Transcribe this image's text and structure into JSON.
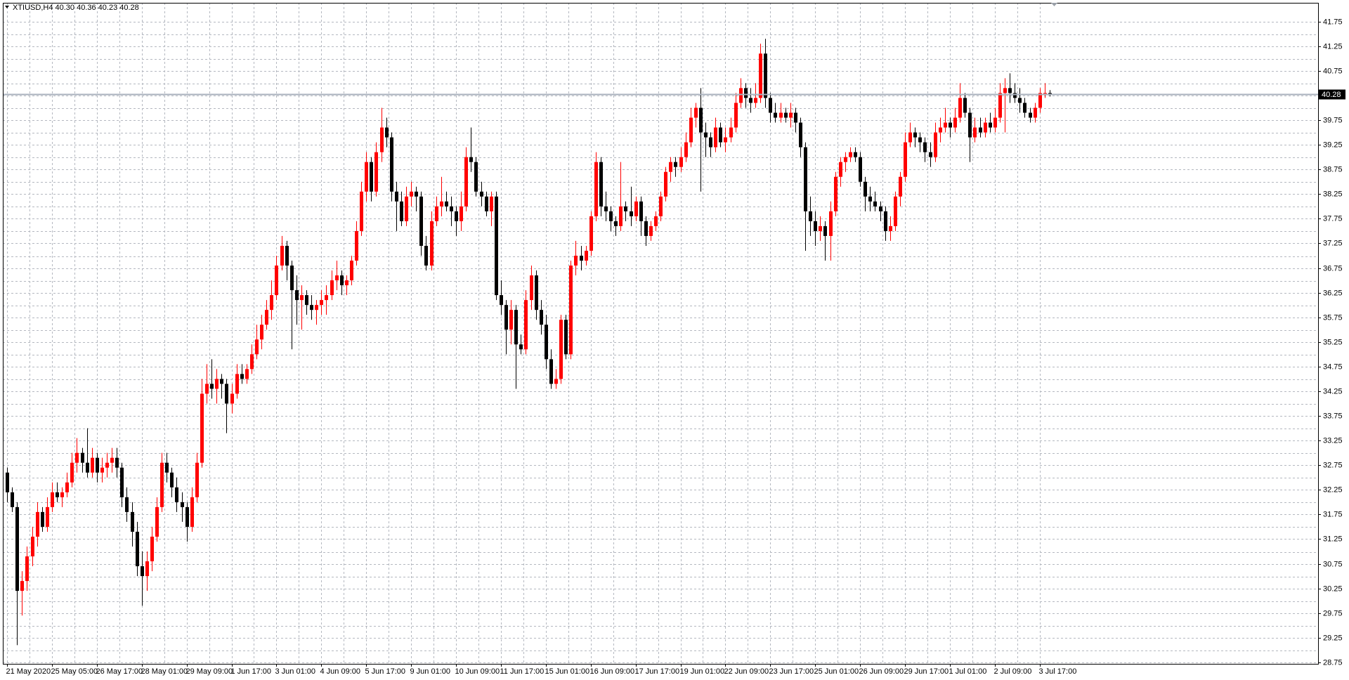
{
  "chart_data": {
    "type": "candlestick",
    "title": "XTIUSD,H4  40.30 40.36 40.23 40.28",
    "up_color": "#ff0000",
    "down_color": "#000000",
    "grid": true,
    "ylim": [
      28.72,
      42.13
    ],
    "yticks": [
      41.75,
      41.25,
      40.75,
      40.25,
      39.75,
      39.25,
      38.75,
      38.25,
      37.75,
      37.25,
      36.75,
      36.25,
      35.75,
      35.25,
      34.75,
      34.25,
      33.75,
      33.25,
      32.75,
      32.25,
      31.75,
      31.25,
      30.75,
      30.25,
      29.75,
      29.25,
      28.75
    ],
    "last_price": 40.28,
    "categories": [
      "21 May 2020",
      null,
      null,
      null,
      null,
      null,
      null,
      null,
      null,
      "25 May 05:00",
      null,
      null,
      null,
      null,
      null,
      null,
      null,
      null,
      "26 May 17:00",
      null,
      null,
      null,
      null,
      null,
      null,
      null,
      null,
      "28 May 01:00",
      null,
      null,
      null,
      null,
      null,
      null,
      null,
      null,
      "29 May 09:00",
      null,
      null,
      null,
      null,
      null,
      null,
      null,
      null,
      "1 Jun 17:00",
      null,
      null,
      null,
      null,
      null,
      null,
      null,
      null,
      "3 Jun 01:00",
      null,
      null,
      null,
      null,
      null,
      null,
      null,
      null,
      "4 Jun 09:00",
      null,
      null,
      null,
      null,
      null,
      null,
      null,
      null,
      "5 Jun 17:00",
      null,
      null,
      null,
      null,
      null,
      null,
      null,
      null,
      "9 Jun 01:00",
      null,
      null,
      null,
      null,
      null,
      null,
      null,
      null,
      "10 Jun 09:00",
      null,
      null,
      null,
      null,
      null,
      null,
      null,
      null,
      "11 Jun 17:00",
      null,
      null,
      null,
      null,
      null,
      null,
      null,
      null,
      "15 Jun 01:00",
      null,
      null,
      null,
      null,
      null,
      null,
      null,
      null,
      "16 Jun 09:00",
      null,
      null,
      null,
      null,
      null,
      null,
      null,
      null,
      "17 Jun 17:00",
      null,
      null,
      null,
      null,
      null,
      null,
      null,
      null,
      "19 Jun 01:00",
      null,
      null,
      null,
      null,
      null,
      null,
      null,
      null,
      "22 Jun 09:00",
      null,
      null,
      null,
      null,
      null,
      null,
      null,
      null,
      "23 Jun 17:00",
      null,
      null,
      null,
      null,
      null,
      null,
      null,
      null,
      "25 Jun 01:00",
      null,
      null,
      null,
      null,
      null,
      null,
      null,
      null,
      "26 Jun 09:00",
      null,
      null,
      null,
      null,
      null,
      null,
      null,
      null,
      "29 Jun 17:00",
      null,
      null,
      null,
      null,
      null,
      null,
      null,
      null,
      "1 Jul 01:00",
      null,
      null,
      null,
      null,
      null,
      null,
      null,
      null,
      "2 Jul 09:00",
      null,
      null,
      null,
      null,
      null,
      null,
      null,
      null,
      "3 Jul 17:00",
      null,
      null
    ],
    "candles": [
      [
        32.6,
        32.7,
        32.0,
        32.2
      ],
      [
        32.2,
        32.3,
        31.8,
        31.9
      ],
      [
        31.9,
        32.0,
        29.1,
        30.2
      ],
      [
        30.2,
        30.6,
        29.7,
        30.4
      ],
      [
        30.4,
        31.1,
        30.2,
        30.9
      ],
      [
        30.9,
        31.5,
        30.7,
        31.3
      ],
      [
        31.3,
        32.0,
        31.1,
        31.8
      ],
      [
        31.8,
        31.9,
        31.4,
        31.5
      ],
      [
        31.5,
        32.1,
        31.4,
        31.9
      ],
      [
        31.9,
        32.4,
        31.8,
        32.2
      ],
      [
        32.2,
        32.4,
        32.0,
        32.1
      ],
      [
        32.1,
        32.3,
        31.9,
        32.2
      ],
      [
        32.2,
        32.6,
        32.1,
        32.4
      ],
      [
        32.4,
        33.0,
        32.3,
        32.8
      ],
      [
        32.8,
        33.3,
        32.6,
        33.0
      ],
      [
        33.0,
        33.1,
        32.6,
        32.8
      ],
      [
        32.8,
        33.5,
        32.5,
        32.6
      ],
      [
        32.6,
        33.1,
        32.5,
        32.9
      ],
      [
        32.9,
        33.0,
        32.4,
        32.6
      ],
      [
        32.6,
        32.9,
        32.4,
        32.7
      ],
      [
        32.7,
        33.0,
        32.5,
        32.8
      ],
      [
        32.8,
        33.1,
        32.6,
        32.9
      ],
      [
        32.9,
        33.1,
        32.5,
        32.7
      ],
      [
        32.7,
        32.8,
        31.9,
        32.1
      ],
      [
        32.1,
        32.3,
        31.6,
        31.8
      ],
      [
        31.8,
        32.0,
        31.1,
        31.4
      ],
      [
        31.4,
        31.6,
        30.5,
        30.7
      ],
      [
        30.7,
        31.0,
        29.9,
        30.5
      ],
      [
        30.5,
        31.0,
        30.2,
        30.8
      ],
      [
        30.8,
        31.5,
        30.6,
        31.3
      ],
      [
        31.3,
        32.1,
        31.2,
        31.9
      ],
      [
        31.9,
        33.0,
        31.8,
        32.8
      ],
      [
        32.8,
        33.0,
        32.4,
        32.6
      ],
      [
        32.6,
        32.7,
        32.1,
        32.3
      ],
      [
        32.3,
        32.5,
        31.8,
        32.0
      ],
      [
        32.0,
        32.2,
        31.6,
        31.9
      ],
      [
        31.9,
        32.0,
        31.2,
        31.5
      ],
      [
        31.5,
        32.3,
        31.4,
        32.1
      ],
      [
        32.1,
        33.0,
        32.0,
        32.8
      ],
      [
        32.8,
        34.5,
        32.7,
        34.2
      ],
      [
        34.2,
        34.8,
        34.0,
        34.4
      ],
      [
        34.4,
        34.9,
        34.1,
        34.3
      ],
      [
        34.3,
        34.7,
        34.0,
        34.5
      ],
      [
        34.5,
        34.6,
        34.1,
        34.4
      ],
      [
        34.4,
        34.5,
        33.4,
        34.0
      ],
      [
        34.0,
        34.4,
        33.8,
        34.2
      ],
      [
        34.2,
        34.8,
        34.1,
        34.6
      ],
      [
        34.6,
        34.8,
        34.4,
        34.5
      ],
      [
        34.5,
        34.8,
        34.4,
        34.7
      ],
      [
        34.7,
        35.2,
        34.6,
        35.0
      ],
      [
        35.0,
        35.6,
        34.9,
        35.3
      ],
      [
        35.3,
        35.8,
        35.1,
        35.6
      ],
      [
        35.6,
        36.1,
        35.5,
        35.9
      ],
      [
        35.9,
        36.5,
        35.7,
        36.2
      ],
      [
        36.2,
        37.0,
        36.1,
        36.8
      ],
      [
        36.8,
        37.4,
        36.7,
        37.2
      ],
      [
        37.2,
        37.3,
        36.5,
        36.8
      ],
      [
        36.8,
        36.9,
        35.1,
        36.3
      ],
      [
        36.3,
        36.6,
        35.6,
        36.1
      ],
      [
        36.1,
        36.4,
        35.5,
        36.2
      ],
      [
        36.2,
        36.3,
        35.8,
        36.0
      ],
      [
        36.0,
        36.2,
        35.7,
        35.9
      ],
      [
        35.9,
        36.1,
        35.6,
        36.0
      ],
      [
        36.0,
        36.3,
        35.8,
        36.1
      ],
      [
        36.1,
        36.4,
        35.8,
        36.2
      ],
      [
        36.2,
        36.7,
        36.1,
        36.5
      ],
      [
        36.5,
        36.9,
        36.3,
        36.6
      ],
      [
        36.6,
        36.7,
        36.2,
        36.4
      ],
      [
        36.4,
        36.6,
        36.2,
        36.5
      ],
      [
        36.5,
        37.0,
        36.4,
        36.9
      ],
      [
        36.9,
        37.7,
        36.8,
        37.5
      ],
      [
        37.5,
        38.5,
        37.4,
        38.3
      ],
      [
        38.3,
        39.1,
        38.1,
        38.9
      ],
      [
        38.9,
        39.0,
        38.1,
        38.3
      ],
      [
        38.3,
        39.3,
        38.2,
        39.1
      ],
      [
        39.1,
        40.0,
        38.9,
        39.6
      ],
      [
        39.6,
        39.8,
        39.2,
        39.4
      ],
      [
        39.4,
        39.5,
        38.1,
        38.3
      ],
      [
        38.3,
        38.5,
        37.5,
        38.1
      ],
      [
        38.1,
        38.3,
        37.6,
        37.7
      ],
      [
        37.7,
        38.4,
        37.6,
        38.2
      ],
      [
        38.2,
        38.5,
        38.0,
        38.3
      ],
      [
        38.3,
        38.4,
        37.9,
        38.2
      ],
      [
        38.2,
        38.3,
        37.0,
        37.2
      ],
      [
        37.2,
        37.4,
        36.7,
        36.8
      ],
      [
        36.8,
        37.9,
        36.7,
        37.7
      ],
      [
        37.7,
        38.2,
        37.6,
        38.0
      ],
      [
        38.0,
        38.6,
        37.8,
        38.1
      ],
      [
        38.1,
        38.3,
        37.9,
        38.0
      ],
      [
        38.0,
        38.2,
        37.6,
        37.9
      ],
      [
        37.9,
        38.0,
        37.4,
        37.7
      ],
      [
        37.7,
        38.3,
        37.5,
        38.0
      ],
      [
        38.0,
        39.2,
        37.9,
        39.0
      ],
      [
        39.0,
        39.6,
        38.7,
        38.9
      ],
      [
        38.9,
        39.0,
        38.2,
        38.3
      ],
      [
        38.3,
        38.5,
        38.0,
        38.2
      ],
      [
        38.2,
        38.3,
        37.8,
        37.9
      ],
      [
        37.9,
        38.3,
        37.6,
        38.2
      ],
      [
        38.2,
        38.3,
        36.1,
        36.2
      ],
      [
        36.2,
        36.5,
        35.8,
        36.0
      ],
      [
        36.0,
        36.1,
        35.0,
        35.5
      ],
      [
        35.5,
        36.1,
        35.2,
        35.9
      ],
      [
        35.9,
        36.0,
        34.3,
        35.2
      ],
      [
        35.2,
        35.4,
        35.0,
        35.1
      ],
      [
        35.1,
        36.3,
        35.0,
        36.1
      ],
      [
        36.1,
        36.8,
        35.9,
        36.6
      ],
      [
        36.6,
        36.7,
        35.7,
        35.9
      ],
      [
        35.9,
        36.1,
        35.4,
        35.6
      ],
      [
        35.6,
        35.8,
        34.7,
        34.9
      ],
      [
        34.9,
        35.1,
        34.3,
        34.4
      ],
      [
        34.4,
        34.7,
        34.3,
        34.5
      ],
      [
        34.5,
        35.8,
        34.4,
        35.7
      ],
      [
        35.7,
        35.8,
        34.9,
        35.0
      ],
      [
        35.0,
        36.9,
        34.9,
        36.8
      ],
      [
        36.8,
        37.3,
        36.6,
        37.0
      ],
      [
        37.0,
        37.2,
        36.7,
        36.9
      ],
      [
        36.9,
        37.2,
        36.8,
        37.1
      ],
      [
        37.1,
        37.9,
        37.0,
        37.8
      ],
      [
        37.8,
        39.1,
        37.7,
        38.9
      ],
      [
        38.9,
        39.0,
        37.8,
        38.0
      ],
      [
        38.0,
        38.3,
        37.7,
        37.9
      ],
      [
        37.9,
        38.0,
        37.5,
        37.7
      ],
      [
        37.7,
        37.8,
        37.4,
        37.6
      ],
      [
        37.6,
        38.9,
        37.5,
        38.0
      ],
      [
        38.0,
        38.1,
        37.7,
        37.9
      ],
      [
        37.9,
        38.4,
        37.6,
        37.8
      ],
      [
        37.8,
        38.2,
        37.7,
        38.1
      ],
      [
        38.1,
        38.2,
        37.4,
        37.7
      ],
      [
        37.7,
        37.8,
        37.2,
        37.4
      ],
      [
        37.4,
        37.7,
        37.3,
        37.6
      ],
      [
        37.6,
        37.9,
        37.5,
        37.8
      ],
      [
        37.8,
        38.3,
        37.7,
        38.2
      ],
      [
        38.2,
        38.8,
        38.1,
        38.7
      ],
      [
        38.7,
        39.0,
        38.5,
        38.9
      ],
      [
        38.9,
        39.0,
        38.6,
        38.8
      ],
      [
        38.8,
        39.2,
        38.7,
        39.0
      ],
      [
        39.0,
        39.5,
        38.9,
        39.3
      ],
      [
        39.3,
        40.0,
        39.2,
        39.8
      ],
      [
        39.8,
        40.1,
        39.6,
        40.0
      ],
      [
        40.0,
        40.4,
        38.3,
        39.5
      ],
      [
        39.5,
        39.7,
        39.0,
        39.4
      ],
      [
        39.4,
        39.5,
        39.0,
        39.2
      ],
      [
        39.2,
        39.8,
        39.1,
        39.6
      ],
      [
        39.6,
        39.7,
        39.2,
        39.3
      ],
      [
        39.3,
        39.6,
        39.1,
        39.4
      ],
      [
        39.4,
        39.8,
        39.3,
        39.6
      ],
      [
        39.6,
        40.3,
        39.5,
        40.1
      ],
      [
        40.1,
        40.6,
        40.0,
        40.4
      ],
      [
        40.4,
        40.5,
        40.0,
        40.2
      ],
      [
        40.2,
        40.4,
        39.9,
        40.1
      ],
      [
        40.1,
        40.5,
        40.0,
        40.2
      ],
      [
        40.2,
        41.3,
        40.1,
        41.1
      ],
      [
        41.1,
        41.4,
        40.0,
        40.2
      ],
      [
        40.2,
        40.3,
        39.7,
        39.9
      ],
      [
        39.9,
        40.1,
        39.7,
        39.8
      ],
      [
        39.8,
        40.1,
        39.7,
        39.9
      ],
      [
        39.9,
        40.0,
        39.7,
        39.8
      ],
      [
        39.8,
        40.1,
        39.6,
        39.9
      ],
      [
        39.9,
        40.0,
        39.5,
        39.7
      ],
      [
        39.7,
        39.8,
        39.0,
        39.2
      ],
      [
        39.2,
        39.3,
        37.1,
        37.9
      ],
      [
        37.9,
        38.2,
        37.4,
        37.7
      ],
      [
        37.7,
        37.9,
        37.2,
        37.5
      ],
      [
        37.5,
        37.8,
        37.3,
        37.6
      ],
      [
        37.6,
        37.7,
        36.9,
        37.4
      ],
      [
        37.4,
        38.1,
        36.9,
        37.9
      ],
      [
        37.9,
        38.7,
        37.8,
        38.6
      ],
      [
        38.6,
        39.0,
        38.4,
        38.9
      ],
      [
        38.9,
        39.1,
        38.7,
        39.0
      ],
      [
        39.0,
        39.2,
        38.9,
        39.1
      ],
      [
        39.1,
        39.2,
        38.9,
        39.0
      ],
      [
        39.0,
        39.1,
        38.4,
        38.5
      ],
      [
        38.5,
        38.6,
        37.9,
        38.2
      ],
      [
        38.2,
        38.4,
        37.9,
        38.1
      ],
      [
        38.1,
        38.3,
        37.9,
        38.0
      ],
      [
        38.0,
        38.1,
        37.7,
        37.9
      ],
      [
        37.9,
        38.0,
        37.3,
        37.5
      ],
      [
        37.5,
        37.8,
        37.3,
        37.6
      ],
      [
        37.6,
        38.3,
        37.5,
        38.2
      ],
      [
        38.2,
        38.7,
        38.0,
        38.6
      ],
      [
        38.6,
        39.5,
        38.5,
        39.3
      ],
      [
        39.3,
        39.7,
        39.2,
        39.5
      ],
      [
        39.5,
        39.6,
        39.2,
        39.4
      ],
      [
        39.4,
        39.5,
        39.1,
        39.3
      ],
      [
        39.3,
        39.4,
        38.9,
        39.1
      ],
      [
        39.1,
        39.3,
        38.8,
        39.0
      ],
      [
        39.0,
        39.7,
        38.9,
        39.5
      ],
      [
        39.5,
        39.8,
        39.3,
        39.6
      ],
      [
        39.6,
        40.0,
        39.5,
        39.7
      ],
      [
        39.7,
        39.8,
        39.4,
        39.6
      ],
      [
        39.6,
        40.0,
        39.5,
        39.8
      ],
      [
        39.8,
        40.5,
        39.7,
        40.2
      ],
      [
        40.2,
        40.3,
        39.8,
        39.9
      ],
      [
        39.9,
        40.0,
        38.9,
        39.4
      ],
      [
        39.4,
        39.8,
        39.3,
        39.6
      ],
      [
        39.6,
        39.8,
        39.4,
        39.5
      ],
      [
        39.5,
        39.8,
        39.4,
        39.7
      ],
      [
        39.7,
        39.9,
        39.5,
        39.6
      ],
      [
        39.6,
        40.0,
        39.5,
        39.8
      ],
      [
        39.8,
        40.5,
        39.7,
        40.3
      ],
      [
        40.3,
        40.6,
        39.5,
        40.4
      ],
      [
        40.4,
        40.7,
        40.1,
        40.3
      ],
      [
        40.3,
        40.5,
        40.1,
        40.2
      ],
      [
        40.2,
        40.4,
        39.9,
        40.1
      ],
      [
        40.1,
        40.2,
        39.8,
        39.9
      ],
      [
        39.9,
        40.0,
        39.7,
        39.8
      ],
      [
        39.8,
        40.1,
        39.7,
        40.0
      ],
      [
        40.0,
        40.4,
        39.9,
        40.3
      ],
      [
        40.3,
        40.5,
        40.2,
        40.3
      ],
      [
        40.3,
        40.36,
        40.23,
        40.28
      ]
    ]
  }
}
